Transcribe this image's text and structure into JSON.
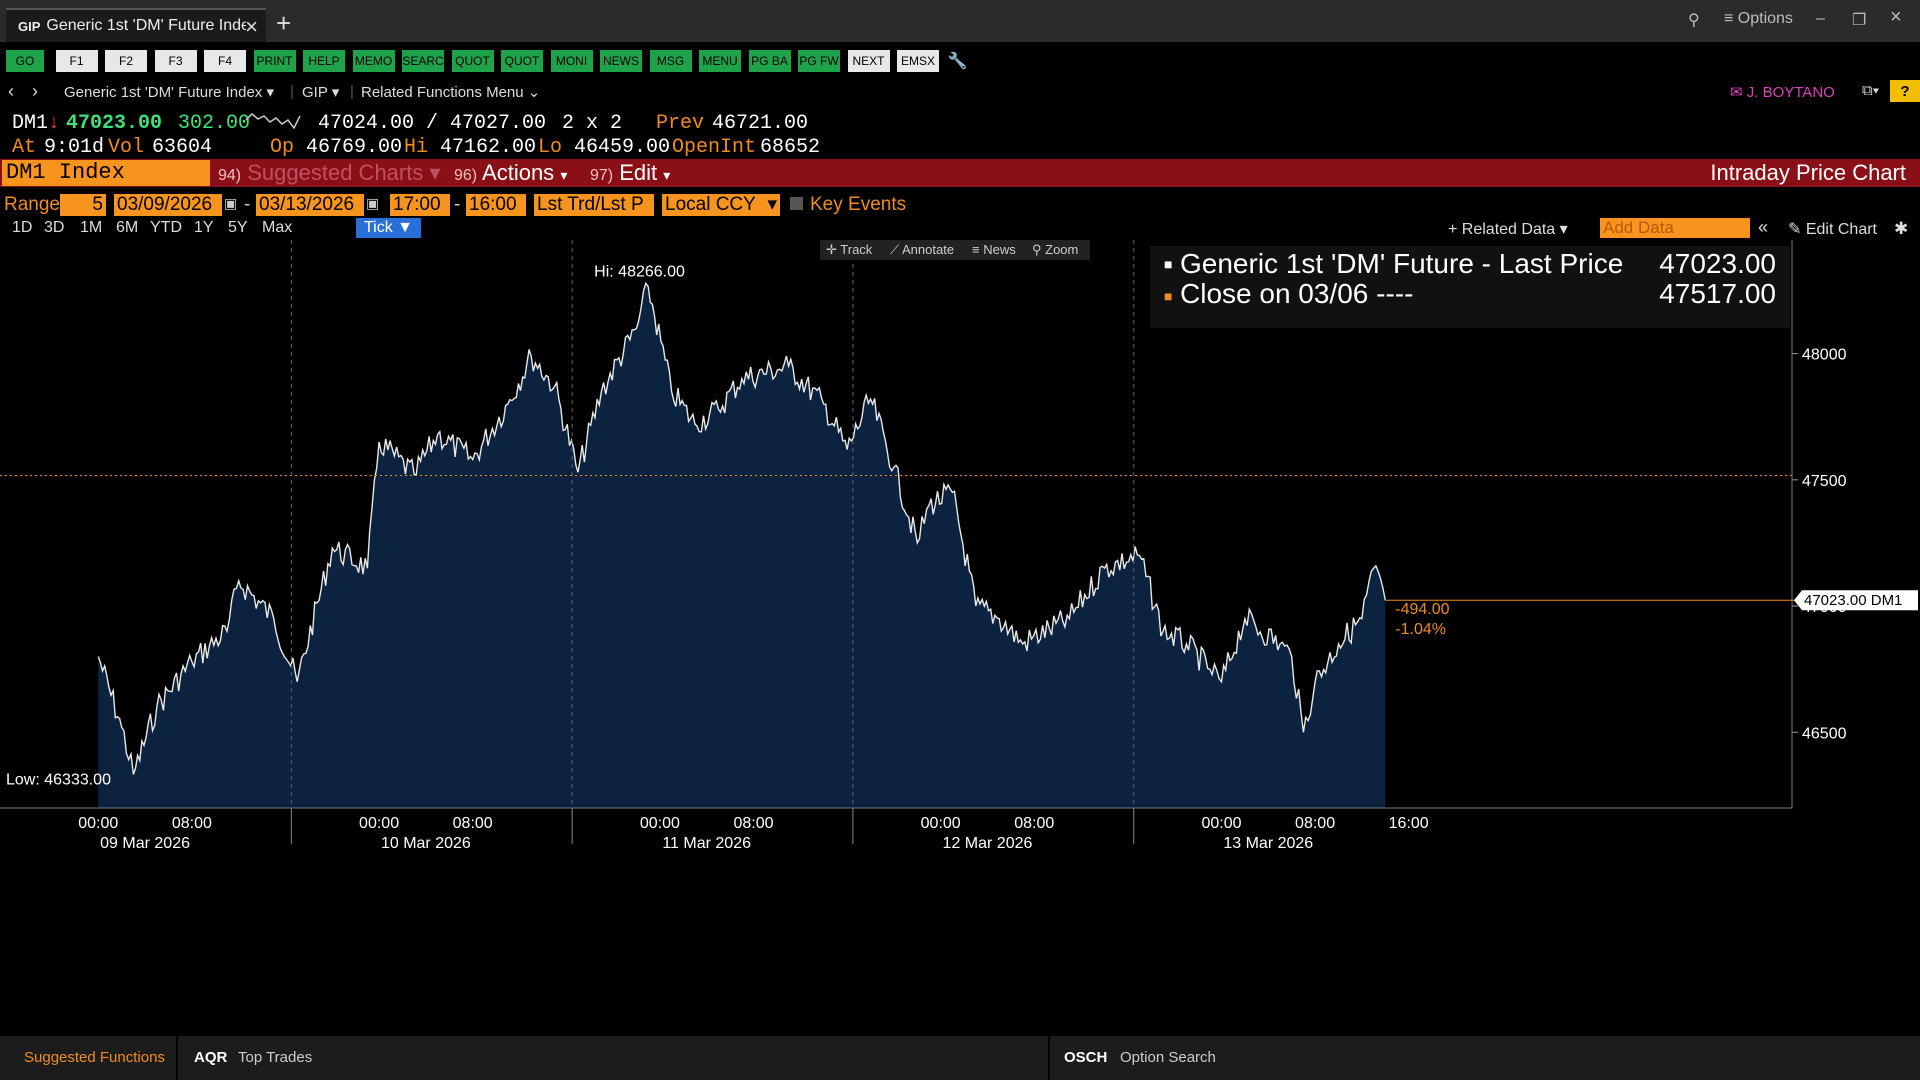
{
  "window": {
    "tab_code": "GIP",
    "tab_title": "Generic 1st 'DM' Future Index",
    "options_label": "≡ Options"
  },
  "fkeys": [
    "GO",
    "F1",
    "F2",
    "F3",
    "F4",
    "PRINT",
    "HELP",
    "MEMO",
    "SEARC",
    "QUOT",
    "QUOT",
    "MONI",
    "NEWS",
    "MSG",
    "MENU",
    "PG BA",
    "PG FW",
    "NEXT",
    "EMSX"
  ],
  "nav": {
    "security": "Generic 1st 'DM' Future Index",
    "function": "GIP",
    "related_menu": "Related Functions Menu",
    "user": "J. BOYTANO",
    "help": "?"
  },
  "quote": {
    "ticker": "DM1",
    "last": "47023.00",
    "change": "302.00",
    "bid_ask": "47024.00 / 47027.00",
    "size": "2 x 2",
    "prev_label": "Prev",
    "prev": "46721.00",
    "at_label": "At",
    "time": "9:01d",
    "vol_label": "Vol",
    "vol": "63604",
    "op_label": "Op",
    "op": "46769.00",
    "hi_label": "Hi",
    "hi": "47162.00",
    "lo_label": "Lo",
    "lo": "46459.00",
    "oi_label": "OpenInt",
    "oi": "68652"
  },
  "header": {
    "security_field": "DM1 Index",
    "suggested_num": "94)",
    "suggested": "Suggested Charts",
    "actions_num": "96)",
    "actions": "Actions",
    "edit_num": "97)",
    "edit": "Edit",
    "title": "Intraday Price Chart"
  },
  "range": {
    "label": "Range",
    "days": "5",
    "start": "03/09/2026",
    "end": "03/13/2026",
    "time_from": "17:00",
    "time_to": "16:00",
    "price_type": "Lst Trd/Lst P",
    "currency": "Local CCY",
    "key_events": "Key Events"
  },
  "periods": [
    "1D",
    "3D",
    "1M",
    "6M",
    "YTD",
    "1Y",
    "5Y",
    "Max"
  ],
  "selected_period": "Tick",
  "toolbar": {
    "related_data": "Related Data",
    "add_data_placeholder": "Add Data",
    "edit_chart": "Edit Chart",
    "track": "Track",
    "annotate": "Annotate",
    "news": "News",
    "zoom": "Zoom"
  },
  "legend": {
    "line1_label": "Generic 1st 'DM' Future - Last Price",
    "line1_value": "47023.00",
    "line2_label": "Close on 03/06 ----",
    "line2_value": "47517.00"
  },
  "chart_data": {
    "type": "area",
    "series": [
      {
        "name": "Generic 1st 'DM' Future - Last Price",
        "color": "#ffffff",
        "points": [
          [
            "2026-03-09 00:00",
            46800
          ],
          [
            "2026-03-09 02:00",
            46520
          ],
          [
            "2026-03-09 03:00",
            46333
          ],
          [
            "2026-03-09 05:00",
            46600
          ],
          [
            "2026-03-09 08:00",
            46780
          ],
          [
            "2026-03-09 11:00",
            46900
          ],
          [
            "2026-03-09 12:00",
            47100
          ],
          [
            "2026-03-09 15:00",
            46950
          ],
          [
            "2026-03-09 17:00",
            46700
          ],
          [
            "2026-03-09 20:00",
            47230
          ],
          [
            "2026-03-09 23:00",
            47150
          ],
          [
            "2026-03-10 00:00",
            47650
          ],
          [
            "2026-03-10 03:00",
            47520
          ],
          [
            "2026-03-10 05:00",
            47680
          ],
          [
            "2026-03-10 08:00",
            47580
          ],
          [
            "2026-03-10 11:00",
            47800
          ],
          [
            "2026-03-10 13:00",
            47990
          ],
          [
            "2026-03-10 15:00",
            47870
          ],
          [
            "2026-03-10 17:00",
            47530
          ],
          [
            "2026-03-10 19:00",
            47850
          ],
          [
            "2026-03-10 22:00",
            48100
          ],
          [
            "2026-03-10 23:00",
            48266
          ],
          [
            "2026-03-11 01:00",
            47850
          ],
          [
            "2026-03-11 03:00",
            47720
          ],
          [
            "2026-03-11 05:00",
            47780
          ],
          [
            "2026-03-11 07:00",
            47900
          ],
          [
            "2026-03-11 11:00",
            47950
          ],
          [
            "2026-03-11 14:00",
            47800
          ],
          [
            "2026-03-11 16:00",
            47620
          ],
          [
            "2026-03-11 18:00",
            47820
          ],
          [
            "2026-03-11 20:00",
            47550
          ],
          [
            "2026-03-11 22:00",
            47250
          ],
          [
            "2026-03-11 23:00",
            47400
          ],
          [
            "2026-03-12 01:00",
            47450
          ],
          [
            "2026-03-12 03:00",
            47000
          ],
          [
            "2026-03-12 05:00",
            46950
          ],
          [
            "2026-03-12 07:00",
            46850
          ],
          [
            "2026-03-12 11:00",
            46950
          ],
          [
            "2026-03-12 14:00",
            47150
          ],
          [
            "2026-03-12 17:00",
            47200
          ],
          [
            "2026-03-12 19:00",
            46900
          ],
          [
            "2026-03-12 21:00",
            46850
          ],
          [
            "2026-03-12 23:00",
            46750
          ],
          [
            "2026-03-13 00:00",
            46700
          ],
          [
            "2026-03-13 02:00",
            46950
          ],
          [
            "2026-03-13 05:00",
            46850
          ],
          [
            "2026-03-13 06:00",
            46800
          ],
          [
            "2026-03-13 07:00",
            46500
          ],
          [
            "2026-03-13 08:00",
            46700
          ],
          [
            "2026-03-13 10:00",
            46850
          ],
          [
            "2026-03-13 12:00",
            46950
          ],
          [
            "2026-03-13 13:00",
            47150
          ],
          [
            "2026-03-13 14:00",
            47023
          ]
        ]
      },
      {
        "name": "Close on 03/06",
        "color": "#f08c1a",
        "value": 47517
      }
    ],
    "y_ticks": [
      46500,
      47000,
      47500,
      48000
    ],
    "ylim": [
      46200,
      48450
    ],
    "x_tick_times": [
      "00:00",
      "08:00"
    ],
    "x_dates": [
      "09 Mar 2026",
      "10 Mar 2026",
      "11 Mar 2026",
      "12 Mar 2026",
      "13 Mar 2026"
    ],
    "x_last_tick": "16:00",
    "high_label": "Hi: 48266.00",
    "low_label": "Low: 46333.00",
    "last_price_tag": "47023.00 DM1",
    "change_label": "-494.00",
    "change_pct_label": "-1.04%"
  },
  "bottom": {
    "suggested": "Suggested Functions",
    "fn1_code": "AQR",
    "fn1_name": "Top Trades",
    "fn2_code": "OSCH",
    "fn2_name": "Option Search"
  }
}
